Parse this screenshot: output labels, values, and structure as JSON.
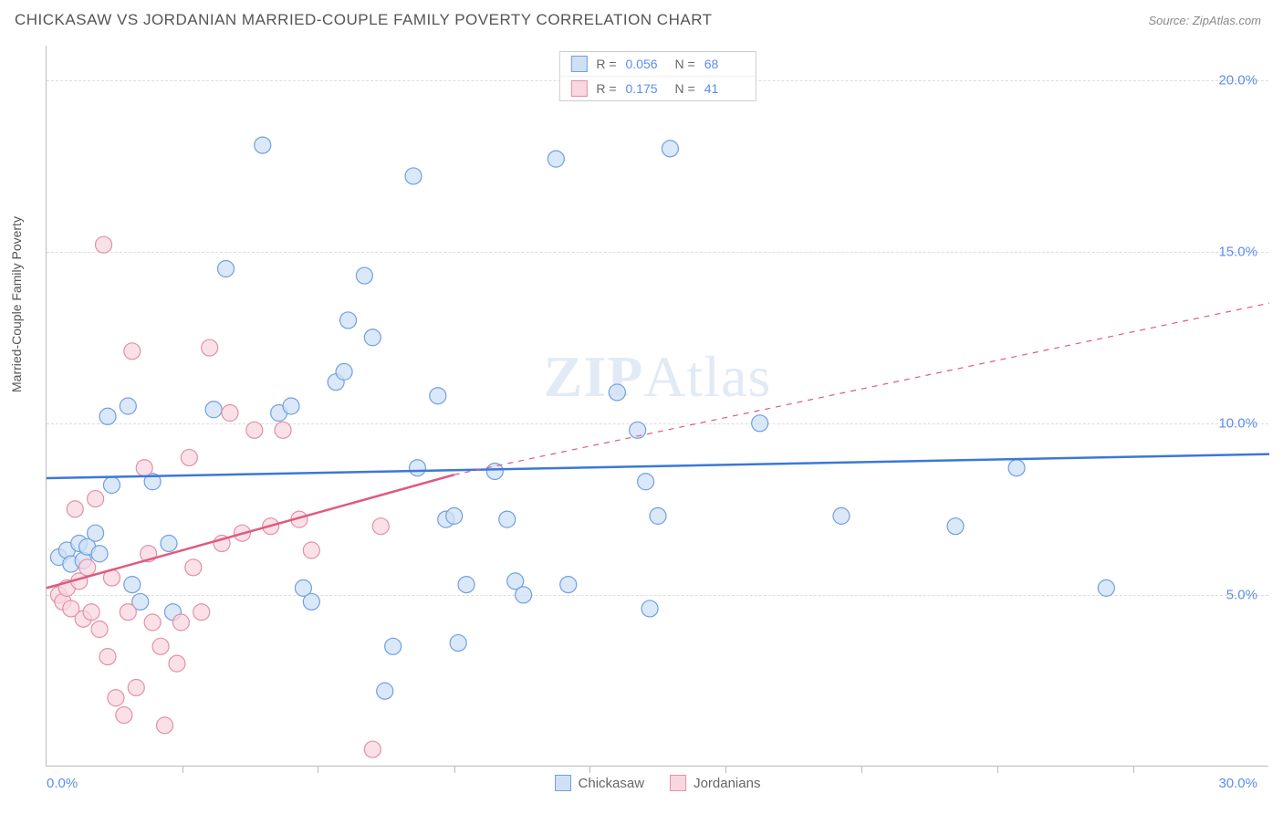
{
  "header": {
    "title": "CHICKASAW VS JORDANIAN MARRIED-COUPLE FAMILY POVERTY CORRELATION CHART",
    "source": "Source: ZipAtlas.com"
  },
  "chart": {
    "type": "scatter",
    "ylabel": "Married-Couple Family Poverty",
    "xlim": [
      0,
      30
    ],
    "ylim": [
      0,
      21
    ],
    "xticks": [
      0,
      30
    ],
    "xtick_labels": [
      "0.0%",
      "30.0%"
    ],
    "xtick_minor": [
      3.33,
      6.66,
      10,
      13.33,
      16.66,
      20,
      23.33,
      26.66
    ],
    "yticks": [
      5,
      10,
      15,
      20
    ],
    "ytick_labels": [
      "5.0%",
      "10.0%",
      "15.0%",
      "20.0%"
    ],
    "background_color": "#ffffff",
    "grid_color": "#dddddd",
    "axis_color": "#bbbbbb",
    "tick_label_color": "#5b8def",
    "marker_radius": 9,
    "marker_stroke_width": 1.2,
    "trend_line_width": 2.5,
    "series": [
      {
        "name": "Chickasaw",
        "marker_fill": "#cfe0f5",
        "marker_stroke": "#6fa0e0",
        "line_color": "#3b78d8",
        "R": "0.056",
        "N": "68",
        "trend": {
          "x1": 0,
          "y1": 8.4,
          "x2": 30,
          "y2": 9.1
        },
        "points": [
          [
            0.3,
            6.1
          ],
          [
            0.5,
            6.3
          ],
          [
            0.6,
            5.9
          ],
          [
            0.8,
            6.5
          ],
          [
            0.9,
            6.0
          ],
          [
            1.0,
            6.4
          ],
          [
            1.2,
            6.8
          ],
          [
            1.3,
            6.2
          ],
          [
            1.5,
            10.2
          ],
          [
            1.6,
            8.2
          ],
          [
            2.0,
            10.5
          ],
          [
            2.1,
            5.3
          ],
          [
            2.3,
            4.8
          ],
          [
            2.6,
            8.3
          ],
          [
            3.0,
            6.5
          ],
          [
            3.1,
            4.5
          ],
          [
            4.1,
            10.4
          ],
          [
            4.4,
            14.5
          ],
          [
            5.3,
            18.1
          ],
          [
            5.7,
            10.3
          ],
          [
            6.0,
            10.5
          ],
          [
            6.3,
            5.2
          ],
          [
            6.5,
            4.8
          ],
          [
            7.1,
            11.2
          ],
          [
            7.3,
            11.5
          ],
          [
            7.4,
            13.0
          ],
          [
            7.8,
            14.3
          ],
          [
            8.0,
            12.5
          ],
          [
            8.3,
            2.2
          ],
          [
            8.5,
            3.5
          ],
          [
            9.0,
            17.2
          ],
          [
            9.1,
            8.7
          ],
          [
            9.6,
            10.8
          ],
          [
            9.8,
            7.2
          ],
          [
            10.0,
            7.3
          ],
          [
            10.1,
            3.6
          ],
          [
            10.3,
            5.3
          ],
          [
            11.0,
            8.6
          ],
          [
            11.3,
            7.2
          ],
          [
            11.5,
            5.4
          ],
          [
            11.7,
            5.0
          ],
          [
            12.5,
            17.7
          ],
          [
            12.8,
            5.3
          ],
          [
            14.0,
            10.9
          ],
          [
            14.5,
            9.8
          ],
          [
            14.7,
            8.3
          ],
          [
            14.8,
            4.6
          ],
          [
            15.0,
            7.3
          ],
          [
            15.3,
            18.0
          ],
          [
            17.5,
            10.0
          ],
          [
            19.5,
            7.3
          ],
          [
            22.3,
            7.0
          ],
          [
            23.8,
            8.7
          ],
          [
            26.0,
            5.2
          ]
        ]
      },
      {
        "name": "Jordanians",
        "marker_fill": "#f8d7e0",
        "marker_stroke": "#e091a8",
        "line_color": "#e05a7e",
        "R": "0.175",
        "N": "41",
        "trend": {
          "x1": 0,
          "y1": 5.2,
          "x2": 10,
          "y2": 8.5
        },
        "trend_ext": {
          "x1": 10,
          "y1": 8.5,
          "x2": 30,
          "y2": 13.5
        },
        "points": [
          [
            0.3,
            5.0
          ],
          [
            0.4,
            4.8
          ],
          [
            0.5,
            5.2
          ],
          [
            0.6,
            4.6
          ],
          [
            0.7,
            7.5
          ],
          [
            0.8,
            5.4
          ],
          [
            0.9,
            4.3
          ],
          [
            1.0,
            5.8
          ],
          [
            1.1,
            4.5
          ],
          [
            1.2,
            7.8
          ],
          [
            1.3,
            4.0
          ],
          [
            1.4,
            15.2
          ],
          [
            1.5,
            3.2
          ],
          [
            1.6,
            5.5
          ],
          [
            1.7,
            2.0
          ],
          [
            1.9,
            1.5
          ],
          [
            2.0,
            4.5
          ],
          [
            2.1,
            12.1
          ],
          [
            2.2,
            2.3
          ],
          [
            2.4,
            8.7
          ],
          [
            2.5,
            6.2
          ],
          [
            2.6,
            4.2
          ],
          [
            2.8,
            3.5
          ],
          [
            2.9,
            1.2
          ],
          [
            3.2,
            3.0
          ],
          [
            3.3,
            4.2
          ],
          [
            3.5,
            9.0
          ],
          [
            3.6,
            5.8
          ],
          [
            3.8,
            4.5
          ],
          [
            4.0,
            12.2
          ],
          [
            4.3,
            6.5
          ],
          [
            4.5,
            10.3
          ],
          [
            4.8,
            6.8
          ],
          [
            5.1,
            9.8
          ],
          [
            5.5,
            7.0
          ],
          [
            5.8,
            9.8
          ],
          [
            6.2,
            7.2
          ],
          [
            6.5,
            6.3
          ],
          [
            8.0,
            0.5
          ],
          [
            8.2,
            7.0
          ]
        ]
      }
    ],
    "legend_top": [
      {
        "swatch_fill": "#cfe0f5",
        "swatch_stroke": "#6fa0e0",
        "R_label": "R =",
        "R": "0.056",
        "N_label": "N =",
        "N": "68"
      },
      {
        "swatch_fill": "#f8d7e0",
        "swatch_stroke": "#e091a8",
        "R_label": "R =",
        "R": "0.175",
        "N_label": "N =",
        "N": "41"
      }
    ],
    "legend_bottom": [
      {
        "swatch_fill": "#cfe0f5",
        "swatch_stroke": "#6fa0e0",
        "label": "Chickasaw"
      },
      {
        "swatch_fill": "#f8d7e0",
        "swatch_stroke": "#e091a8",
        "label": "Jordanians"
      }
    ],
    "watermark": {
      "zip": "ZIP",
      "atlas": "Atlas"
    }
  }
}
